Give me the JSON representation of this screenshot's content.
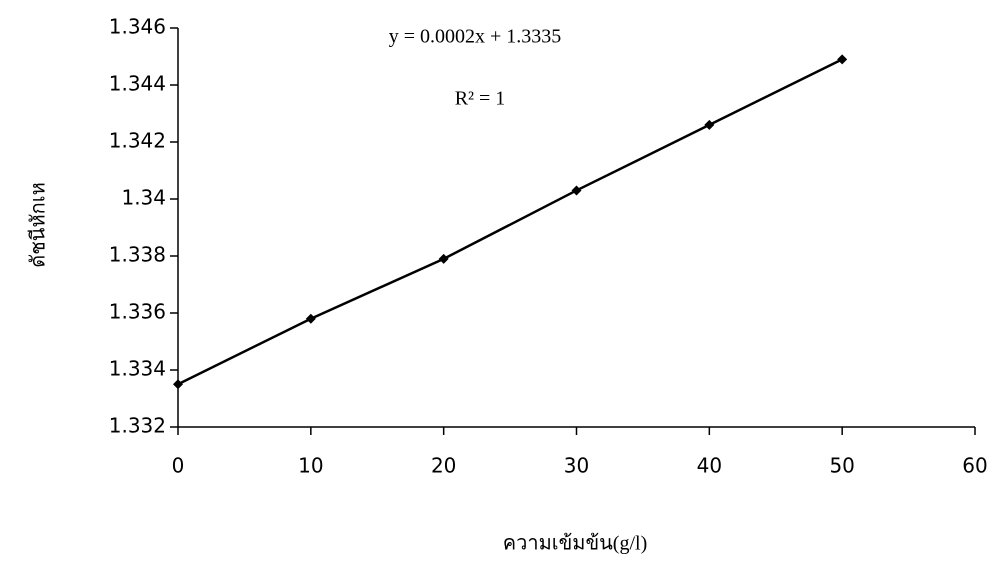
{
  "chart_data": {
    "type": "scatter",
    "x_label": "ความเข้มข้น(g/l)",
    "y_label": "ดัชนีหักเห",
    "annotations": [
      "y = 0.0002x + 1.3335",
      "R² = 1"
    ],
    "series": [
      {
        "x": [
          0,
          10,
          20,
          30,
          40,
          50
        ],
        "values": [
          1.3335,
          1.3358,
          1.3379,
          1.3403,
          1.3426,
          1.3449
        ],
        "color": "#000000"
      }
    ],
    "xlim": [
      0,
      60
    ],
    "xticks": [
      0,
      10,
      20,
      30,
      40,
      50,
      60
    ],
    "ylim": [
      1.332,
      1.346
    ],
    "yticks": [
      1.332,
      1.334,
      1.336,
      1.338,
      1.34,
      1.342,
      1.344,
      1.346
    ],
    "grid": false
  }
}
